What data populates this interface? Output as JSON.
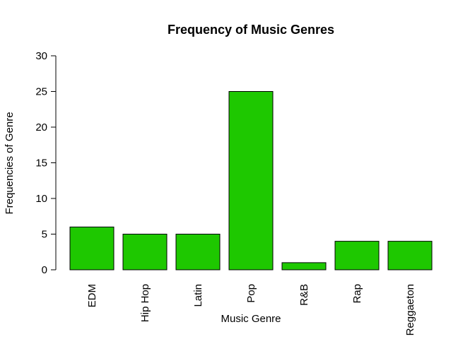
{
  "chart_data": {
    "type": "bar",
    "title": "Frequency of Music Genres",
    "xlabel": "Music Genre",
    "ylabel": "Frequencies of Genre",
    "categories": [
      "EDM",
      "Hip Hop",
      "Latin",
      "Pop",
      "R&B",
      "Rap",
      "Reggaeton"
    ],
    "values": [
      6,
      5,
      5,
      25,
      1,
      4,
      4
    ],
    "ylim": [
      0,
      30
    ],
    "yticks": [
      0,
      5,
      10,
      15,
      20,
      25,
      30
    ],
    "ytick_labels": [
      "0",
      "5",
      "10",
      "15",
      "20",
      "25",
      "30"
    ],
    "bar_color": "#1ec800",
    "bar_stroke": "#000000",
    "grid": false,
    "legend": "none"
  }
}
